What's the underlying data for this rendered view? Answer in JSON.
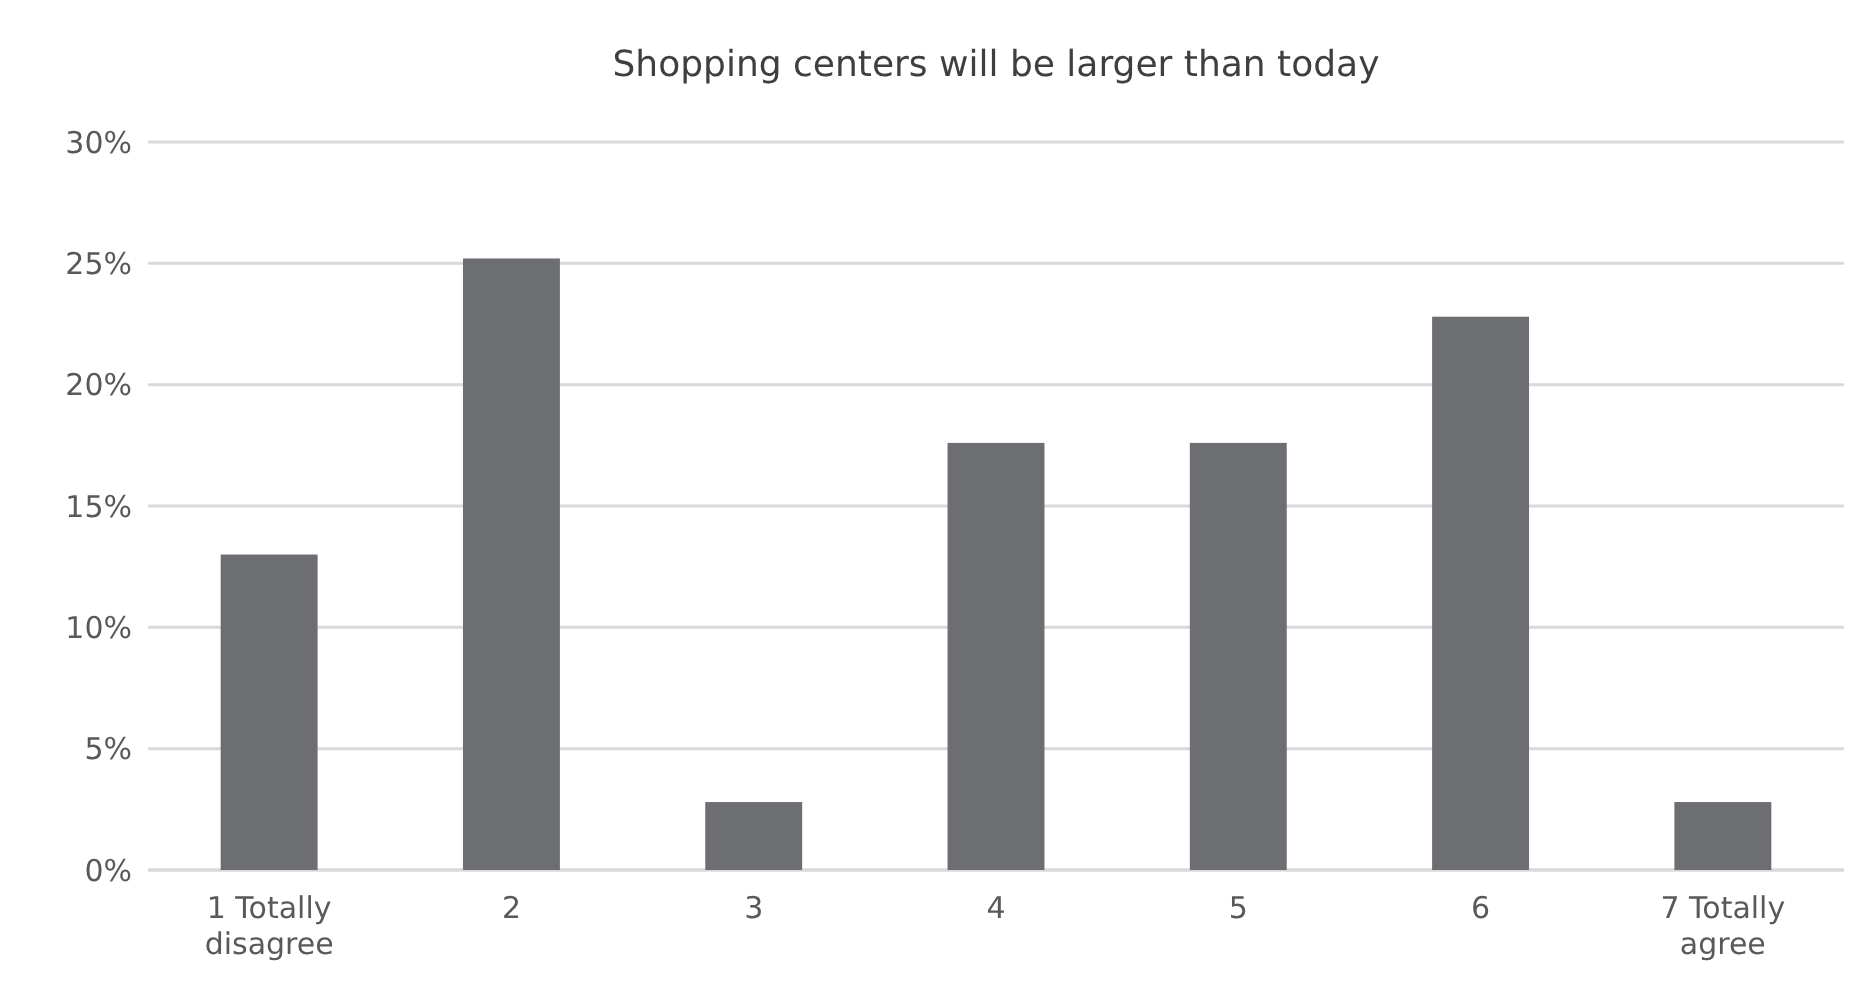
{
  "chart_data": {
    "type": "bar",
    "title": "Shopping centers will be larger than today",
    "categories": [
      "1 Totally disagree",
      "2",
      "3",
      "4",
      "5",
      "6",
      "7 Totally agree"
    ],
    "values": [
      13.0,
      25.2,
      2.8,
      17.6,
      17.6,
      22.8,
      2.8
    ],
    "color": "#6d6e72",
    "ylim": [
      0,
      30
    ],
    "yticks": [
      {
        "value": 0,
        "label": "0%"
      },
      {
        "value": 5,
        "label": "5%"
      },
      {
        "value": 10,
        "label": "10%"
      },
      {
        "value": 15,
        "label": "15%"
      },
      {
        "value": 20,
        "label": "20%"
      },
      {
        "value": 25,
        "label": "25%"
      },
      {
        "value": 30,
        "label": "30%"
      }
    ],
    "grid": "y"
  }
}
